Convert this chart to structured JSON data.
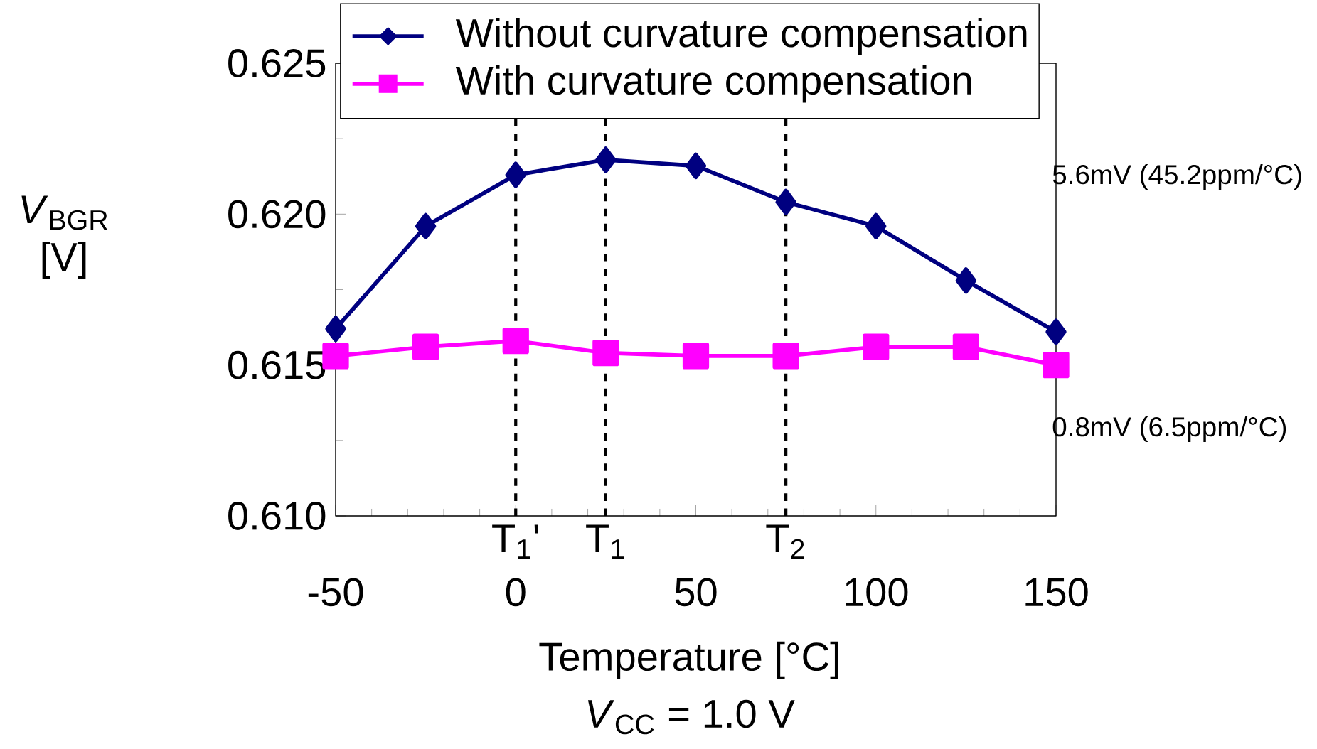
{
  "chart_data": {
    "type": "line",
    "xlabel": "Temperature [°C]",
    "ylabel": "*V*$_{BGR}$ [V]",
    "x": [
      -50,
      -25,
      0,
      25,
      50,
      75,
      100,
      125,
      150
    ],
    "series": [
      {
        "name": "Without curvature compensation",
        "color": "#000080",
        "marker": "diamond",
        "values": [
          0.6162,
          0.6196,
          0.6213,
          0.6218,
          0.6216,
          0.6204,
          0.6196,
          0.6178,
          0.6161
        ]
      },
      {
        "name": "With curvature compensation",
        "color": "#ff00ff",
        "marker": "square",
        "values": [
          0.6153,
          0.6156,
          0.6158,
          0.6154,
          0.6153,
          0.6153,
          0.6156,
          0.6156,
          0.615
        ]
      }
    ],
    "xlim": [
      -50,
      150
    ],
    "xticks": [
      -50,
      0,
      50,
      100,
      150
    ],
    "ylim": [
      0.61,
      0.625
    ],
    "yticks": [
      {
        "value": 0.61,
        "label": "0.610"
      },
      {
        "value": 0.615,
        "label": "0.615"
      },
      {
        "value": 0.62,
        "label": "0.620"
      },
      {
        "value": 0.625,
        "label": "0.625"
      }
    ],
    "ref_lines": [
      {
        "axis": "x",
        "value": 0,
        "label": "T$_{1}$'",
        "line_style": "dashed"
      },
      {
        "axis": "x",
        "value": 25,
        "label": "T$_{1}$",
        "line_style": "dashed"
      },
      {
        "axis": "x",
        "value": 75,
        "label": "T$_{2}$",
        "line_style": "dashed"
      }
    ],
    "annotations": [
      "5.6mV (45.2ppm/°C)",
      "0.8mV (6.5ppm/°C)",
      "*V*$_{CC}$ = 1.0 V"
    ],
    "legend": "top",
    "grid": false
  }
}
